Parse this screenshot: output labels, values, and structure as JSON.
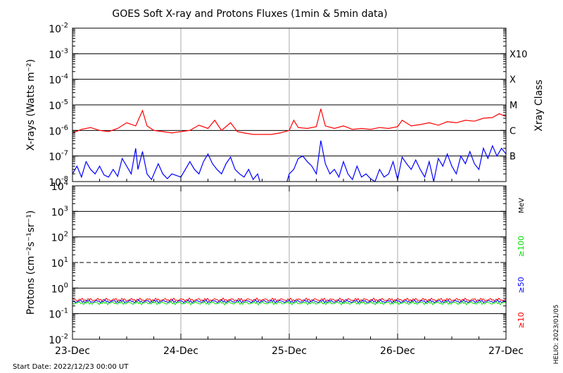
{
  "chart_data": [
    {
      "type": "line",
      "title": "GOES Soft X-ray and Protons Fluxes   (1min & 5min data)",
      "ylabel": "X-rays (Watts m⁻²)",
      "yscale": "log",
      "ylim": [
        1e-08,
        0.01
      ],
      "y_tick_labels": [
        {
          "value": 1e-08,
          "base": "10",
          "exp": "-8"
        },
        {
          "value": 1e-07,
          "base": "10",
          "exp": "-7"
        },
        {
          "value": 1e-06,
          "base": "10",
          "exp": "-6"
        },
        {
          "value": 1e-05,
          "base": "10",
          "exp": "-5"
        },
        {
          "value": 0.0001,
          "base": "10",
          "exp": "-4"
        },
        {
          "value": 0.001,
          "base": "10",
          "exp": "-3"
        },
        {
          "value": 0.01,
          "base": "10",
          "exp": "-2"
        }
      ],
      "right_axis_label": "Xray Class",
      "class_labels": [
        {
          "label": "B",
          "value": 1e-07
        },
        {
          "label": "C",
          "value": 1e-06
        },
        {
          "label": "M",
          "value": 1e-05
        },
        {
          "label": "X",
          "value": 0.0001
        },
        {
          "label": "X10",
          "value": 0.001
        }
      ],
      "series": [
        {
          "color": "#ff0000",
          "points": [
            [
              "12/23 00:00",
              8e-07
            ],
            [
              "12/23 02:00",
              1.1e-06
            ],
            [
              "12/23 04:00",
              1.3e-06
            ],
            [
              "12/23 06:00",
              1e-06
            ],
            [
              "12/23 08:00",
              9e-07
            ],
            [
              "12/23 10:00",
              1.2e-06
            ],
            [
              "12/23 12:00",
              2e-06
            ],
            [
              "12/23 14:00",
              1.5e-06
            ],
            [
              "12/23 15:30",
              6e-06
            ],
            [
              "12/23 16:30",
              1.5e-06
            ],
            [
              "12/23 18:00",
              1e-06
            ],
            [
              "12/23 20:00",
              9e-07
            ],
            [
              "12/23 22:00",
              8e-07
            ],
            [
              "12/24 00:00",
              9e-07
            ],
            [
              "12/24 02:00",
              1e-06
            ],
            [
              "12/24 04:00",
              1.6e-06
            ],
            [
              "12/24 06:00",
              1.2e-06
            ],
            [
              "12/24 07:30",
              2.5e-06
            ],
            [
              "12/24 09:00",
              1e-06
            ],
            [
              "12/24 11:00",
              2e-06
            ],
            [
              "12/24 12:30",
              9e-07
            ],
            [
              "12/24 14:00",
              8e-07
            ],
            [
              "12/24 16:00",
              7e-07
            ],
            [
              "12/24 18:00",
              7e-07
            ],
            [
              "12/24 20:00",
              7e-07
            ],
            [
              "12/24 22:00",
              8e-07
            ],
            [
              "12/25 00:00",
              1e-06
            ],
            [
              "12/25 01:00",
              2.5e-06
            ],
            [
              "12/25 02:00",
              1.3e-06
            ],
            [
              "12/25 04:00",
              1.2e-06
            ],
            [
              "12/25 06:00",
              1.4e-06
            ],
            [
              "12/25 07:00",
              7e-06
            ],
            [
              "12/25 08:00",
              1.5e-06
            ],
            [
              "12/25 10:00",
              1.2e-06
            ],
            [
              "12/25 12:00",
              1.5e-06
            ],
            [
              "12/25 14:00",
              1.1e-06
            ],
            [
              "12/25 16:00",
              1.2e-06
            ],
            [
              "12/25 18:00",
              1.1e-06
            ],
            [
              "12/25 20:00",
              1.3e-06
            ],
            [
              "12/25 22:00",
              1.2e-06
            ],
            [
              "12/26 00:00",
              1.4e-06
            ],
            [
              "12/26 01:00",
              2.5e-06
            ],
            [
              "12/26 03:00",
              1.5e-06
            ],
            [
              "12/26 05:00",
              1.7e-06
            ],
            [
              "12/26 07:00",
              2e-06
            ],
            [
              "12/26 09:00",
              1.6e-06
            ],
            [
              "12/26 11:00",
              2.2e-06
            ],
            [
              "12/26 13:00",
              2e-06
            ],
            [
              "12/26 15:00",
              2.5e-06
            ],
            [
              "12/26 17:00",
              2.3e-06
            ],
            [
              "12/26 19:00",
              3e-06
            ],
            [
              "12/26 21:00",
              3.2e-06
            ],
            [
              "12/26 22:30",
              4.5e-06
            ],
            [
              "12/27 00:00",
              3.5e-06
            ]
          ]
        },
        {
          "color": "#0000ff",
          "points": [
            [
              "12/23 00:00",
              2e-08
            ],
            [
              "12/23 01:00",
              4e-08
            ],
            [
              "12/23 02:00",
              1.5e-08
            ],
            [
              "12/23 03:00",
              6e-08
            ],
            [
              "12/23 04:00",
              3e-08
            ],
            [
              "12/23 05:00",
              2e-08
            ],
            [
              "12/23 06:00",
              4e-08
            ],
            [
              "12/23 07:00",
              1.8e-08
            ],
            [
              "12/23 08:00",
              1.5e-08
            ],
            [
              "12/23 09:00",
              3e-08
            ],
            [
              "12/23 10:00",
              1.6e-08
            ],
            [
              "12/23 11:00",
              8e-08
            ],
            [
              "12/23 12:00",
              4e-08
            ],
            [
              "12/23 13:00",
              2e-08
            ],
            [
              "12/23 14:00",
              2e-07
            ],
            [
              "12/23 14:30",
              3e-08
            ],
            [
              "12/23 15:30",
              1.5e-07
            ],
            [
              "12/23 16:30",
              2e-08
            ],
            [
              "12/23 17:30",
              1.2e-08
            ],
            [
              "12/23 19:00",
              5e-08
            ],
            [
              "12/23 20:00",
              2e-08
            ],
            [
              "12/23 21:00",
              1.3e-08
            ],
            [
              "12/23 22:00",
              2e-08
            ],
            [
              "12/24 00:00",
              1.5e-08
            ],
            [
              "12/24 01:00",
              3e-08
            ],
            [
              "12/24 02:00",
              6e-08
            ],
            [
              "12/24 03:00",
              3e-08
            ],
            [
              "12/24 04:00",
              2e-08
            ],
            [
              "12/24 05:00",
              6e-08
            ],
            [
              "12/24 06:00",
              1.2e-07
            ],
            [
              "12/24 07:00",
              5e-08
            ],
            [
              "12/24 08:00",
              3e-08
            ],
            [
              "12/24 09:00",
              2e-08
            ],
            [
              "12/24 10:00",
              5e-08
            ],
            [
              "12/24 11:00",
              9e-08
            ],
            [
              "12/24 12:00",
              3e-08
            ],
            [
              "12/24 13:00",
              2e-08
            ],
            [
              "12/24 14:00",
              1.5e-08
            ],
            [
              "12/24 15:00",
              3e-08
            ],
            [
              "12/24 16:00",
              1.2e-08
            ],
            [
              "12/24 17:00",
              2e-08
            ],
            [
              "12/24 17:30",
              1e-08
            ],
            [
              "12/24 23:30",
              1e-08
            ],
            [
              "12/25 00:00",
              2e-08
            ],
            [
              "12/25 01:00",
              3e-08
            ],
            [
              "12/25 02:00",
              8e-08
            ],
            [
              "12/25 03:00",
              1e-07
            ],
            [
              "12/25 04:00",
              6e-08
            ],
            [
              "12/25 05:00",
              4e-08
            ],
            [
              "12/25 06:00",
              2e-08
            ],
            [
              "12/25 07:00",
              4e-07
            ],
            [
              "12/25 08:00",
              5e-08
            ],
            [
              "12/25 09:00",
              2e-08
            ],
            [
              "12/25 10:00",
              3e-08
            ],
            [
              "12/25 11:00",
              1.5e-08
            ],
            [
              "12/25 12:00",
              6e-08
            ],
            [
              "12/25 13:00",
              2e-08
            ],
            [
              "12/25 14:00",
              1.2e-08
            ],
            [
              "12/25 15:00",
              4e-08
            ],
            [
              "12/25 16:00",
              1.5e-08
            ],
            [
              "12/25 17:00",
              2e-08
            ],
            [
              "12/25 18:00",
              1.3e-08
            ],
            [
              "12/25 19:00",
              1e-08
            ],
            [
              "12/25 20:00",
              3e-08
            ],
            [
              "12/25 21:00",
              1.5e-08
            ],
            [
              "12/25 22:00",
              2e-08
            ],
            [
              "12/25 23:00",
              6e-08
            ],
            [
              "12/26 00:00",
              1.2e-08
            ],
            [
              "12/26 01:00",
              9e-08
            ],
            [
              "12/26 02:00",
              5e-08
            ],
            [
              "12/26 03:00",
              3e-08
            ],
            [
              "12/26 04:00",
              7e-08
            ],
            [
              "12/26 05:00",
              3e-08
            ],
            [
              "12/26 06:00",
              1.5e-08
            ],
            [
              "12/26 07:00",
              6e-08
            ],
            [
              "12/26 08:00",
              1e-08
            ],
            [
              "12/26 09:00",
              8e-08
            ],
            [
              "12/26 10:00",
              4e-08
            ],
            [
              "12/26 11:00",
              1.2e-07
            ],
            [
              "12/26 12:00",
              4e-08
            ],
            [
              "12/26 13:00",
              2e-08
            ],
            [
              "12/26 14:00",
              1e-07
            ],
            [
              "12/26 15:00",
              5e-08
            ],
            [
              "12/26 16:00",
              1.5e-07
            ],
            [
              "12/26 17:00",
              5e-08
            ],
            [
              "12/26 18:00",
              3e-08
            ],
            [
              "12/26 19:00",
              2e-07
            ],
            [
              "12/26 20:00",
              8e-08
            ],
            [
              "12/26 21:00",
              2.5e-07
            ],
            [
              "12/26 22:00",
              1e-07
            ],
            [
              "12/26 23:00",
              2e-07
            ],
            [
              "12/27 00:00",
              1.2e-07
            ]
          ]
        }
      ]
    },
    {
      "type": "line",
      "ylabel": "Protons (cm⁻²s⁻¹sr⁻¹)",
      "yscale": "log",
      "ylim": [
        0.01,
        10000
      ],
      "y_tick_labels": [
        {
          "value": 0.01,
          "base": "10",
          "exp": "-2"
        },
        {
          "value": 0.1,
          "base": "10",
          "exp": "-1"
        },
        {
          "value": 1,
          "base": "10",
          "exp": "0"
        },
        {
          "value": 10,
          "base": "10",
          "exp": "1"
        },
        {
          "value": 100,
          "base": "10",
          "exp": "2"
        },
        {
          "value": 1000,
          "base": "10",
          "exp": "3"
        },
        {
          "value": 10000,
          "base": "10",
          "exp": "4"
        }
      ],
      "threshold_line": 10,
      "unit_label": "MeV",
      "legend": [
        {
          "label": "≥100",
          "color": "#00dd00"
        },
        {
          "label": "≥50",
          "color": "#0000ff"
        },
        {
          "label": "≥10",
          "color": "#ff0000"
        }
      ],
      "series": [
        {
          "name": "≥10",
          "color": "#ff0000",
          "level": 0.35
        },
        {
          "name": "≥50",
          "color": "#0000ff",
          "level": 0.3
        },
        {
          "name": "≥100",
          "color": "#00dd00",
          "level": 0.26
        }
      ]
    }
  ],
  "x_axis": {
    "start": "12/23 00:00",
    "end": "12/27 00:00",
    "ticks": [
      {
        "t": "12/23 00:00",
        "label": "23-Dec"
      },
      {
        "t": "12/24 00:00",
        "label": "24-Dec"
      },
      {
        "t": "12/25 00:00",
        "label": "25-Dec"
      },
      {
        "t": "12/26 00:00",
        "label": "26-Dec"
      },
      {
        "t": "12/27 00:00",
        "label": "27-Dec"
      }
    ]
  },
  "footer": {
    "start_date": "Start Date: 2022/12/23 00:00 UT",
    "credit": "HELIO: 2023/01/05"
  }
}
